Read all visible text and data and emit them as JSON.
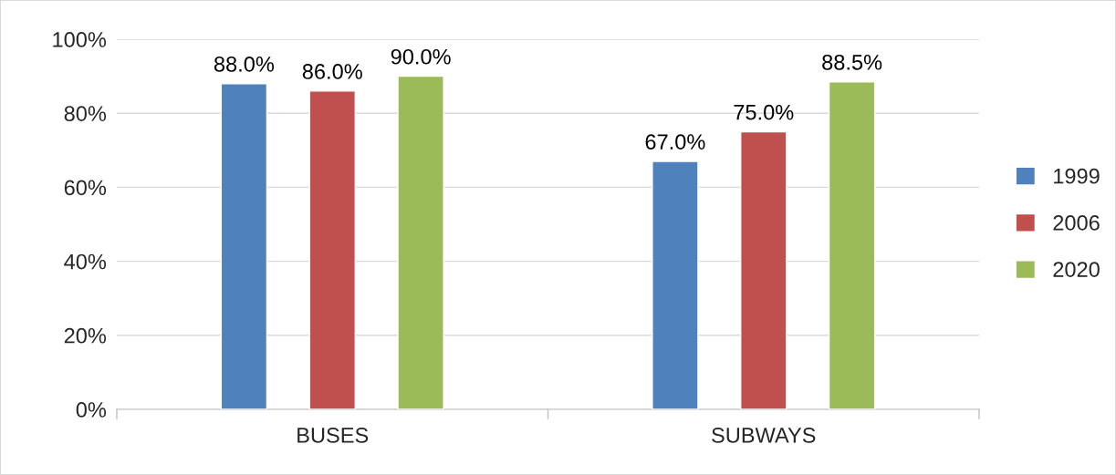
{
  "chart_data": {
    "type": "bar",
    "categories": [
      "BUSES",
      "SUBWAYS"
    ],
    "series": [
      {
        "name": "1999",
        "color": "#4f81bd",
        "values": [
          88.0,
          67.0
        ],
        "value_labels": [
          "88.0%",
          "67.0%"
        ]
      },
      {
        "name": "2006",
        "color": "#c0504d",
        "values": [
          86.0,
          75.0
        ],
        "value_labels": [
          "86.0%",
          "75.0%"
        ]
      },
      {
        "name": "2020",
        "color": "#9bbb59",
        "values": [
          90.0,
          88.5
        ],
        "value_labels": [
          "90.0%",
          "88.5%"
        ]
      }
    ],
    "ylim": [
      0,
      100
    ],
    "yticks": [
      {
        "value": 0,
        "label": "0%"
      },
      {
        "value": 20,
        "label": "20%"
      },
      {
        "value": 40,
        "label": "40%"
      },
      {
        "value": 60,
        "label": "60%"
      },
      {
        "value": 80,
        "label": "80%"
      },
      {
        "value": 100,
        "label": "100%"
      }
    ],
    "grid": "y",
    "legend": "right"
  }
}
